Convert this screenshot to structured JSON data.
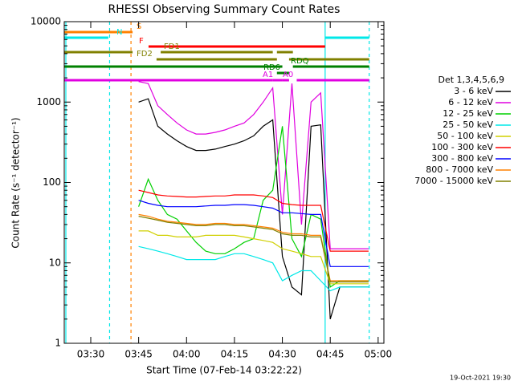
{
  "chart_data": {
    "type": "line",
    "title": "RHESSI Observing Summary Count Rates",
    "x_label": "Start Time (07-Feb-14 03:22:22)",
    "y_label": "Count Rate (s⁻¹ detector⁻¹)",
    "footer": "19-Oct-2021 19:30",
    "legend_title": "Det 1,3,4,5,6,9",
    "log_y": true,
    "xlim": [
      201.7,
      301.8
    ],
    "ylim": [
      1,
      10000
    ],
    "xticks": [
      {
        "value": 210,
        "label": "03:30"
      },
      {
        "value": 225,
        "label": "03:45"
      },
      {
        "value": 240,
        "label": "04:00"
      },
      {
        "value": 255,
        "label": "04:15"
      },
      {
        "value": 270,
        "label": "04:30"
      },
      {
        "value": 285,
        "label": "04:45"
      },
      {
        "value": 300,
        "label": "05:00"
      }
    ],
    "yticks": [
      1,
      10,
      100,
      1000,
      10000
    ],
    "x": [
      225,
      228,
      231,
      234,
      237,
      240,
      243,
      246,
      249,
      252,
      255,
      258,
      261,
      264,
      267,
      270,
      273,
      276,
      279,
      282,
      285,
      288,
      291,
      294,
      297
    ],
    "series": [
      {
        "name": "3 - 6 keV",
        "color": "#000000",
        "values": [
          1000,
          1100,
          500,
          400,
          330,
          280,
          250,
          250,
          260,
          280,
          300,
          330,
          380,
          500,
          600,
          12,
          5,
          4,
          500,
          520,
          2,
          5,
          5,
          5,
          5
        ]
      },
      {
        "name": "6 - 12 keV",
        "color": "#e000e0",
        "values": [
          1800,
          1700,
          900,
          700,
          550,
          450,
          400,
          400,
          420,
          450,
          500,
          550,
          700,
          1000,
          1500,
          40,
          1700,
          30,
          1000,
          1300,
          15,
          15,
          15,
          15,
          15
        ]
      },
      {
        "name": "12 - 25 keV",
        "color": "#00d000",
        "values": [
          50,
          110,
          60,
          40,
          35,
          25,
          18,
          14,
          13,
          13,
          15,
          18,
          20,
          60,
          80,
          500,
          20,
          12,
          40,
          35,
          5,
          6,
          6,
          6,
          6
        ]
      },
      {
        "name": "25 - 50 keV",
        "color": "#00e8e8",
        "values": [
          16,
          15,
          14,
          13,
          12,
          11,
          11,
          11,
          11,
          12,
          13,
          13,
          12,
          11,
          10,
          6,
          7,
          8,
          8,
          6,
          4.5,
          5,
          5,
          5,
          5
        ]
      },
      {
        "name": "50 - 100 keV",
        "color": "#d0d000",
        "values": [
          25,
          25,
          22,
          22,
          21,
          21,
          21,
          22,
          22,
          22,
          22,
          21,
          20,
          19,
          18,
          15,
          14,
          13,
          12,
          12,
          5.5,
          5.5,
          5.5,
          5.5,
          5.5
        ]
      },
      {
        "name": "100 - 300 keV",
        "color": "#ff0000",
        "values": [
          80,
          75,
          70,
          68,
          67,
          66,
          66,
          67,
          68,
          68,
          70,
          70,
          70,
          68,
          65,
          55,
          53,
          52,
          52,
          52,
          14,
          14,
          14,
          14,
          14
        ]
      },
      {
        "name": "300 - 800 keV",
        "color": "#0000ff",
        "values": [
          60,
          55,
          52,
          50,
          50,
          50,
          50,
          51,
          52,
          52,
          53,
          53,
          52,
          50,
          48,
          42,
          42,
          41,
          40,
          40,
          9,
          9,
          9,
          9,
          9
        ]
      },
      {
        "name": "800 - 7000 keV",
        "color": "#ff8000",
        "values": [
          40,
          38,
          35,
          33,
          32,
          31,
          30,
          30,
          31,
          31,
          30,
          30,
          29,
          28,
          27,
          24,
          23,
          23,
          22,
          22,
          6,
          6,
          6,
          6,
          6
        ]
      },
      {
        "name": "7000 - 15000 keV",
        "color": "#808000",
        "values": [
          38,
          36,
          34,
          32,
          31,
          30,
          29,
          29,
          30,
          30,
          29,
          29,
          28,
          27,
          26,
          23,
          22,
          22,
          21,
          21,
          5.8,
          5.8,
          5.8,
          5.8,
          5.8
        ]
      }
    ],
    "flags": [
      {
        "name": "S",
        "color": "#ff8000",
        "segments": [
          [
            201.7,
            223.1
          ]
        ]
      },
      {
        "name": "N",
        "color": "#00e8e8",
        "segments": [
          [
            201.7,
            215.5
          ],
          [
            283.4,
            297.2
          ]
        ]
      },
      {
        "name": "F",
        "color": "#ff0000",
        "segments": [
          [
            228.1,
            283.4
          ]
        ]
      },
      {
        "name": "FD1",
        "color": "#808000",
        "segments": [
          [
            201.7,
            223.1
          ],
          [
            231.9,
            267.0
          ],
          [
            268.3,
            273.3
          ]
        ]
      },
      {
        "name": "FD2",
        "color": "#808000",
        "segments": [
          [
            230.6,
            268.3
          ],
          [
            272.1,
            297.2
          ]
        ]
      },
      {
        "name": "RDQ",
        "color": "#008000",
        "segments": [
          [
            201.7,
            270.0
          ],
          [
            273.3,
            297.2
          ]
        ]
      },
      {
        "name": "RD6",
        "color": "#008000",
        "segments": [
          [
            268.3,
            272.1
          ]
        ]
      },
      {
        "name": "A1",
        "color": "#e000e0",
        "segments": [
          [
            201.7,
            267.0
          ],
          [
            270.0,
            272.1
          ],
          [
            274.5,
            297.2
          ]
        ]
      },
      {
        "name": "A0",
        "color": "#e000e0",
        "segments": [
          [
            267.0,
            270.0
          ]
        ]
      }
    ],
    "markers": [
      {
        "time": 202.2,
        "color": "#00e8e8",
        "style": "solid"
      },
      {
        "time": 215.9,
        "color": "#00e8e8",
        "style": "dashed"
      },
      {
        "time": 222.6,
        "color": "#ff8000",
        "style": "dashed"
      },
      {
        "time": 283.4,
        "color": "#00e8e8",
        "style": "solid"
      },
      {
        "time": 297.2,
        "color": "#00e8e8",
        "style": "dashed"
      }
    ]
  }
}
